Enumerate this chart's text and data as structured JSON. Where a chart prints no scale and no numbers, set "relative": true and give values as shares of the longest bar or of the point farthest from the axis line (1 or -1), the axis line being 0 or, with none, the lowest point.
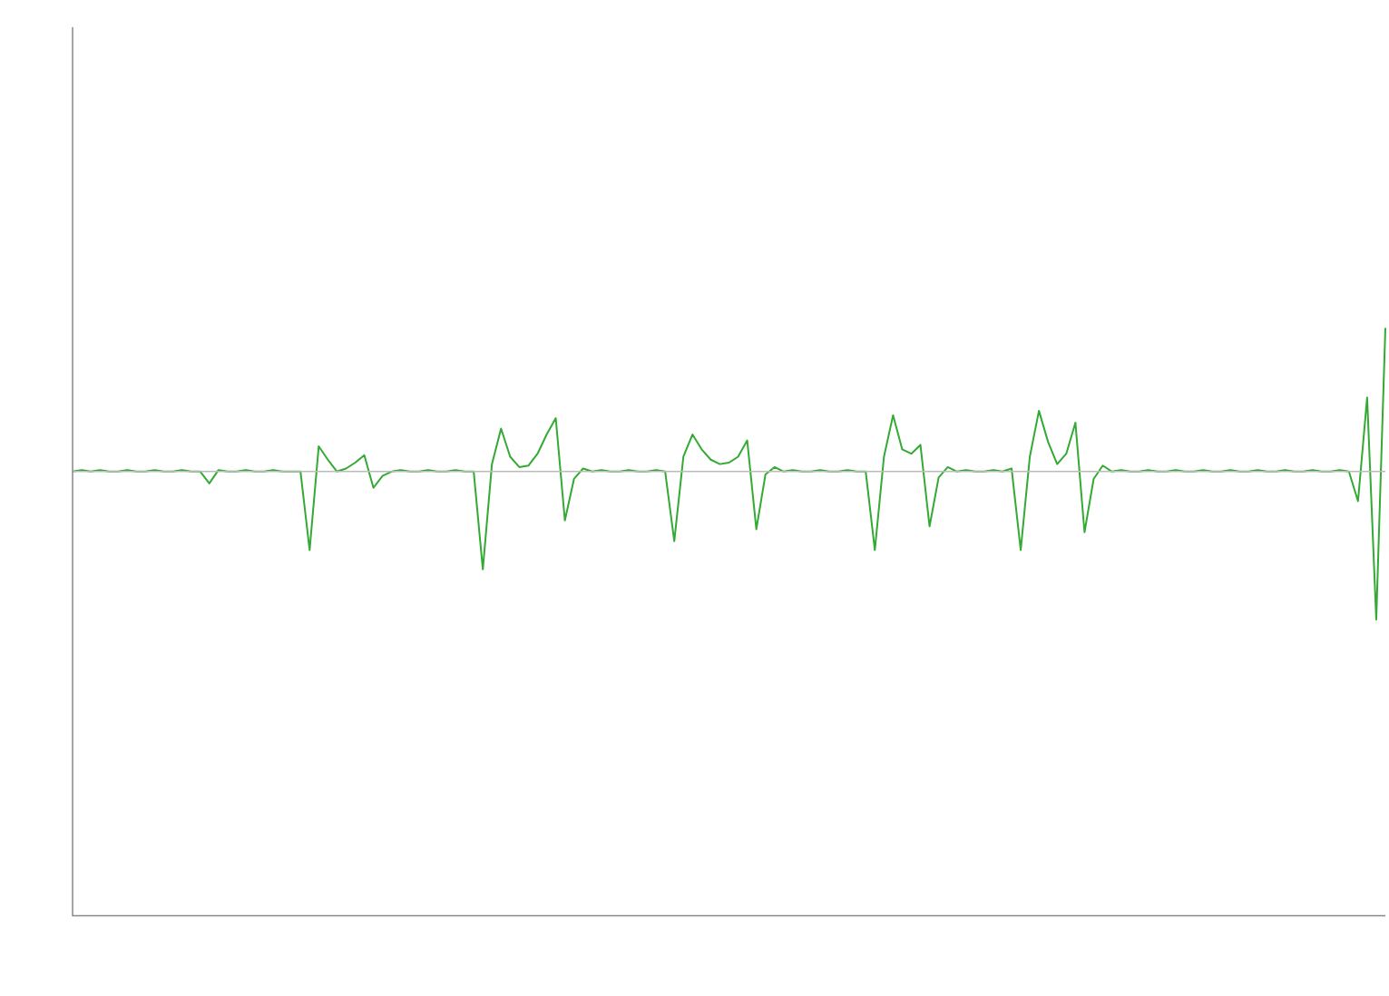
{
  "chart_data": {
    "type": "line",
    "relative": true,
    "grid": false,
    "legend": false,
    "categories": [
      null,
      null,
      null,
      null,
      null,
      null,
      null,
      null,
      null,
      null,
      null,
      null,
      null,
      null,
      null,
      null,
      null,
      null,
      null,
      null,
      null,
      null,
      null,
      null,
      null,
      null,
      null,
      null,
      null,
      null,
      null,
      null,
      null,
      null,
      null,
      null,
      null,
      null,
      null,
      null,
      null,
      null,
      null,
      null,
      null,
      null,
      null,
      null,
      null,
      null,
      null,
      null,
      null,
      null,
      null,
      null,
      null,
      null,
      null,
      null,
      null,
      null,
      null,
      null,
      null,
      null,
      null,
      null,
      null,
      null,
      null,
      null,
      null,
      null,
      null,
      null,
      null,
      null,
      null,
      null,
      null,
      null,
      null,
      null,
      null,
      null,
      null,
      null,
      null,
      null,
      null,
      null,
      null,
      null,
      null,
      null,
      null,
      null,
      null,
      null,
      null,
      null,
      null,
      null,
      null,
      null,
      null,
      null,
      null,
      null,
      null,
      null,
      null,
      null,
      null,
      null,
      null,
      null,
      null,
      null,
      null,
      null,
      null,
      null,
      null,
      null,
      null,
      null,
      null,
      null,
      null,
      null,
      null,
      null,
      null,
      null,
      null,
      null,
      null,
      null,
      null,
      null,
      null,
      null,
      null
    ],
    "series": [
      {
        "color": "#33aa33",
        "values": [
          0,
          0.01,
          0,
          0.01,
          0,
          0,
          0.01,
          0,
          0,
          0.01,
          0,
          0,
          0.01,
          0,
          0,
          -0.08,
          0.01,
          0,
          0,
          0.01,
          0,
          0,
          0.01,
          0,
          0,
          0,
          -0.53,
          0.17,
          0.08,
          0,
          0.02,
          0.06,
          0.11,
          -0.11,
          -0.03,
          0,
          0.01,
          0,
          0,
          0.01,
          0,
          0,
          0.01,
          0,
          0,
          -0.66,
          0.05,
          0.29,
          0.1,
          0.03,
          0.04,
          0.12,
          0.25,
          0.36,
          -0.33,
          -0.05,
          0.02,
          0,
          0.01,
          0,
          0,
          0.01,
          0,
          0,
          0.01,
          0,
          -0.47,
          0.1,
          0.25,
          0.15,
          0.08,
          0.05,
          0.06,
          0.1,
          0.21,
          -0.39,
          -0.02,
          0.03,
          0,
          0.01,
          0,
          0,
          0.01,
          0,
          0,
          0.01,
          0,
          0,
          -0.53,
          0.1,
          0.38,
          0.15,
          0.12,
          0.18,
          -0.37,
          -0.04,
          0.03,
          0,
          0.01,
          0,
          0,
          0.01,
          0,
          0.02,
          -0.53,
          0.1,
          0.41,
          0.2,
          0.05,
          0.12,
          0.33,
          -0.41,
          -0.05,
          0.04,
          0,
          0.01,
          0,
          0,
          0.01,
          0,
          0,
          0.01,
          0,
          0,
          0.01,
          0,
          0,
          0.01,
          0,
          0,
          0.01,
          0,
          0,
          0.01,
          0,
          0,
          0.01,
          0,
          0,
          0.01,
          0,
          -0.2,
          0.5,
          -1,
          0.97
        ]
      }
    ]
  }
}
